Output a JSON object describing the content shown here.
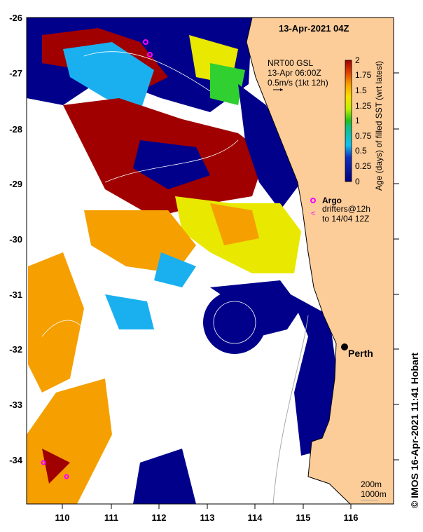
{
  "title": "13-Apr-2021 04Z",
  "model": {
    "line1": "NRT00 GSL",
    "line2": "13-Apr 06:00Z",
    "line3": "0.5m/s (1kt 12h)"
  },
  "colorbar": {
    "label": "Age (days) of filled SST (wrt latest)",
    "ticks": [
      "2",
      "1.75",
      "1.5",
      "1.25",
      "1",
      "0.75",
      "0.5",
      "0.25",
      "0"
    ],
    "range": [
      0,
      2
    ]
  },
  "legend": {
    "argo": "Argo",
    "drifters1": "drifters@12h",
    "drifters2": "to 14/04 12Z"
  },
  "city": "Perth",
  "contours": {
    "c1": "200m",
    "c2": "1000m"
  },
  "credit": "© IMOS 16-Apr-2021 11:41 Hobart",
  "axes": {
    "lon_ticks": [
      "110",
      "111",
      "112",
      "113",
      "114",
      "115",
      "116"
    ],
    "lat_ticks": [
      "-26",
      "-27",
      "-28",
      "-29",
      "-30",
      "-31",
      "-32",
      "-33",
      "-34"
    ]
  },
  "colors": {
    "land": "#fccc99",
    "deep": "#00008b",
    "red": "#a00000",
    "orange": "#f5a000",
    "yellow": "#e8e800",
    "cyan": "#1ab0f0",
    "green": "#30d030",
    "argo": "#ff00ff"
  }
}
